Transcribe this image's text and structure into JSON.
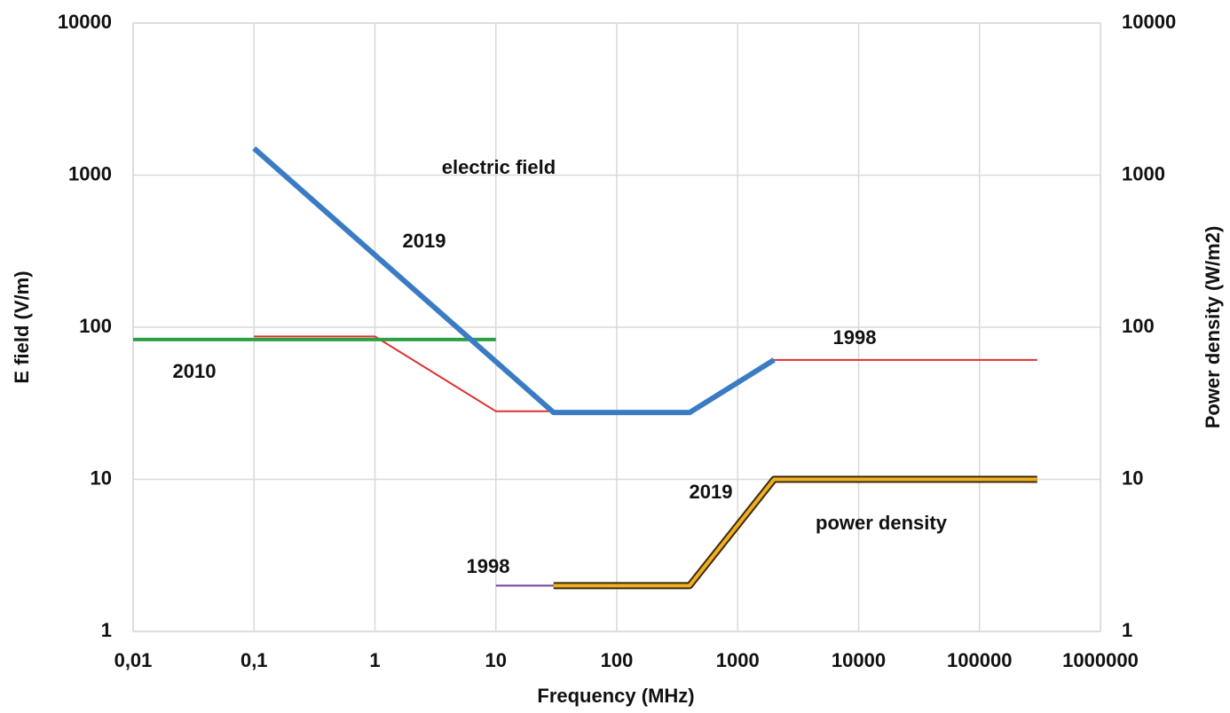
{
  "chart_data": {
    "type": "line",
    "xlabel": "Frequency (MHz)",
    "ylabel": "E field (V/m)",
    "y2label": "Power density (W/m2)",
    "xscale": "log",
    "yscale": "log",
    "grid": true,
    "xlim": [
      0.01,
      1000000
    ],
    "xticks": [
      {
        "value": 0.01,
        "label": "0,01"
      },
      {
        "value": 0.1,
        "label": "0,1"
      },
      1,
      10,
      100,
      1000,
      10000,
      100000,
      1000000
    ],
    "ylim": [
      1,
      10000
    ],
    "yticks": [
      1,
      10,
      100,
      1000,
      10000
    ],
    "y2lim": [
      1,
      10000
    ],
    "y2ticks": [
      1,
      10,
      100,
      1000,
      10000
    ],
    "annotations": [
      "electric field",
      "2019",
      "1998",
      "2010",
      "2019",
      "power density",
      "1998"
    ],
    "series": [
      {
        "color": "#e03030",
        "x": [
          0.1,
          1,
          10,
          400,
          2000,
          300000
        ],
        "values": [
          87,
          87,
          28,
          28,
          61,
          61
        ]
      },
      {
        "color": "#2ea043",
        "x": [
          0.01,
          10
        ],
        "values": [
          83,
          83
        ]
      },
      {
        "color": "#3a7cc4",
        "x": [
          0.1,
          30,
          400,
          2000
        ],
        "values": [
          1500,
          27.5,
          27.5,
          61
        ]
      },
      {
        "color": "#7040a0",
        "axis": "y2",
        "x": [
          10,
          400,
          2000,
          300000
        ],
        "values": [
          2,
          2,
          10,
          10
        ]
      },
      {
        "color": "#f0b020",
        "axis": "y2",
        "x": [
          30,
          400,
          2000,
          300000
        ],
        "values": [
          2,
          2,
          10,
          10
        ]
      }
    ]
  }
}
